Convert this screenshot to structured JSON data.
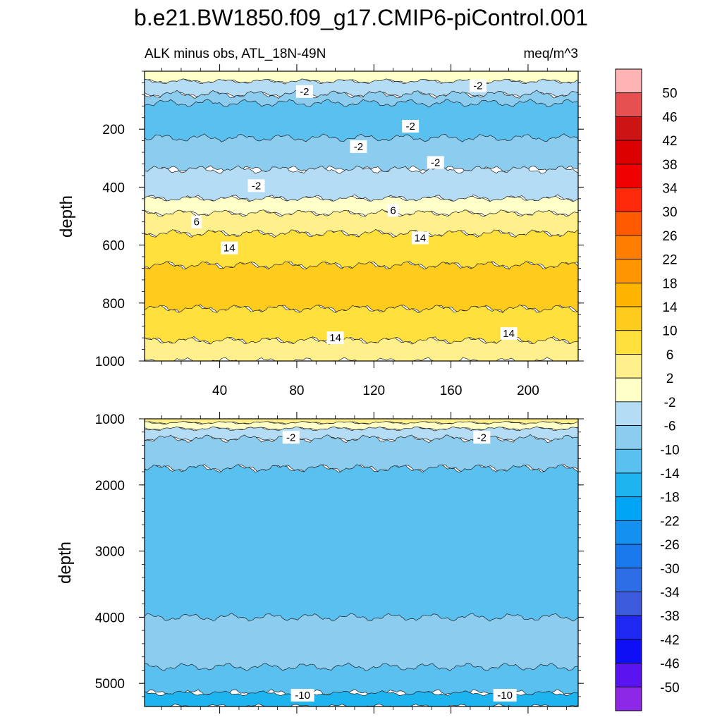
{
  "chart_data": {
    "type": "contour",
    "title": "b.e21.BW1850.f09_g17.CMIP6-piControl.001",
    "subtitle_left": "ALK minus obs, ATL_18N-49N",
    "subtitle_right": "meq/m^3",
    "colorbar": {
      "levels": [
        "50",
        "46",
        "42",
        "38",
        "34",
        "30",
        "26",
        "22",
        "18",
        "14",
        "10",
        "6",
        "2",
        "-2",
        "-6",
        "-10",
        "-14",
        "-18",
        "-22",
        "-26",
        "-30",
        "-34",
        "-38",
        "-42",
        "-46",
        "-50"
      ],
      "colors": [
        "#ffb4b4",
        "#e65050",
        "#cc1414",
        "#dc0000",
        "#f00000",
        "#ff2a0a",
        "#ff5a00",
        "#ff7d00",
        "#ff9600",
        "#ffb400",
        "#ffcc1e",
        "#ffe03c",
        "#fff08c",
        "#ffffc8",
        "#b4dcf4",
        "#8cccee",
        "#5ac0f0",
        "#1eb4f0",
        "#00a5f5",
        "#1491f0",
        "#1978eb",
        "#2d6ee6",
        "#3c5adc",
        "#1e28f0",
        "#0f0ff5",
        "#5a14f0",
        "#8c28e6"
      ]
    },
    "panels": [
      {
        "name": "upper",
        "ylabel": "depth",
        "ylim": [
          0,
          1000
        ],
        "y_inverted": true,
        "yticks": [
          "200",
          "400",
          "600",
          "800",
          "1000"
        ],
        "xlim": [
          1,
          226
        ],
        "xticks": [
          "40",
          "80",
          "120",
          "160",
          "200"
        ],
        "bands": [
          {
            "level": "2",
            "depth_top": 0,
            "depth_bottom": 35
          },
          {
            "level": "-2",
            "depth_top": 35,
            "depth_bottom": 80
          },
          {
            "level": "-6",
            "depth_top": 80,
            "depth_bottom": 340
          },
          {
            "level": "-10",
            "depth_top": 110,
            "depth_bottom": 230
          },
          {
            "level": "-2",
            "depth_top": 340,
            "depth_bottom": 440
          },
          {
            "level": "2",
            "depth_top": 440,
            "depth_bottom": 490
          },
          {
            "level": "6",
            "depth_top": 490,
            "depth_bottom": 560
          },
          {
            "level": "10",
            "depth_top": 560,
            "depth_bottom": 670
          },
          {
            "level": "14",
            "depth_top": 670,
            "depth_bottom": 820
          },
          {
            "level": "10",
            "depth_top": 820,
            "depth_bottom": 930
          },
          {
            "level": "6",
            "depth_top": 930,
            "depth_bottom": 1000
          }
        ],
        "contour_labels": [
          {
            "text": "-2",
            "x": 84,
            "depth": 70
          },
          {
            "text": "-2",
            "x": 174,
            "depth": 50
          },
          {
            "text": "-2",
            "x": 139,
            "depth": 190
          },
          {
            "text": "-2",
            "x": 112,
            "depth": 260
          },
          {
            "text": "-2",
            "x": 152,
            "depth": 315
          },
          {
            "text": "-2",
            "x": 59,
            "depth": 395
          },
          {
            "text": "6",
            "x": 28,
            "depth": 520
          },
          {
            "text": "6",
            "x": 130,
            "depth": 480
          },
          {
            "text": "14",
            "x": 45,
            "depth": 610
          },
          {
            "text": "14",
            "x": 144,
            "depth": 575
          },
          {
            "text": "14",
            "x": 100,
            "depth": 920
          },
          {
            "text": "14",
            "x": 190,
            "depth": 905
          }
        ]
      },
      {
        "name": "lower",
        "ylabel": "depth",
        "ylim": [
          1000,
          5350
        ],
        "y_inverted": true,
        "yticks": [
          "1000",
          "2000",
          "3000",
          "4000",
          "5000"
        ],
        "xlim": [
          1,
          226
        ],
        "bands": [
          {
            "level": "6",
            "depth_top": 1000,
            "depth_bottom": 1060
          },
          {
            "level": "2",
            "depth_top": 1060,
            "depth_bottom": 1150
          },
          {
            "level": "-2",
            "depth_top": 1150,
            "depth_bottom": 1300
          },
          {
            "level": "-6",
            "depth_top": 1300,
            "depth_bottom": 1750
          },
          {
            "level": "-10",
            "depth_top": 1750,
            "depth_bottom": 5150
          },
          {
            "level": "-6",
            "depth_top": 4000,
            "depth_bottom": 4750
          },
          {
            "level": "-14",
            "depth_top": 5150,
            "depth_bottom": 5350
          }
        ],
        "contour_labels": [
          {
            "text": "-2",
            "x": 77,
            "depth": 1280
          },
          {
            "text": "-2",
            "x": 176,
            "depth": 1280
          },
          {
            "text": "-10",
            "x": 83,
            "depth": 5180
          },
          {
            "text": "-10",
            "x": 188,
            "depth": 5180
          }
        ]
      }
    ]
  }
}
